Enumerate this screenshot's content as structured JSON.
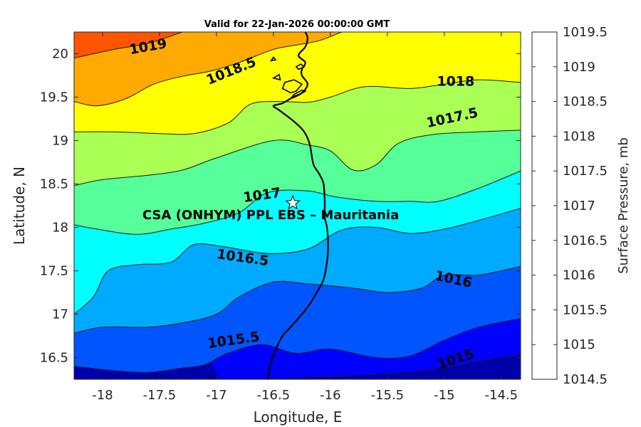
{
  "chart_data": {
    "type": "contourf",
    "title": "Valid for 22-Jan-2026 00:00:00 GMT",
    "xlabel": "Longitude, E",
    "ylabel": "Latitude, N",
    "xlim": [
      -18.25,
      -14.33
    ],
    "ylim": [
      16.25,
      20.25
    ],
    "x_ticks": [
      -18,
      -17.5,
      -17,
      -16.5,
      -16,
      -15.5,
      -15,
      -14.5
    ],
    "x_tick_labels": [
      "-18",
      "-17.5",
      "-17",
      "-16.5",
      "-16",
      "-15.5",
      "-15",
      "-14.5"
    ],
    "y_ticks": [
      16.5,
      17,
      17.5,
      18,
      18.5,
      19,
      19.5,
      20
    ],
    "y_tick_labels": [
      "16.5",
      "17",
      "17.5",
      "18",
      "18.5",
      "19",
      "19.5",
      "20"
    ],
    "colorbar": {
      "title": "Surface Pressure, mb",
      "levels": [
        1014.5,
        1015,
        1015.5,
        1016,
        1016.5,
        1017,
        1017.5,
        1018,
        1018.5,
        1019,
        1019.5
      ],
      "labels": [
        "1014.5",
        "1015",
        "1015.5",
        "1016",
        "1016.5",
        "1017",
        "1017.5",
        "1018",
        "1018.5",
        "1019",
        "1019.5"
      ],
      "colors": [
        "#0000aa",
        "#0000ff",
        "#0055ff",
        "#00aaff",
        "#00ffff",
        "#55ff99",
        "#aaff55",
        "#ffff00",
        "#ffaa00",
        "#ff5500",
        "#ff0000"
      ]
    },
    "contours": [
      {
        "level": 1015,
        "label": "1015",
        "label_lon": -14.9,
        "label_lat": 16.48,
        "label_angle": -18,
        "path": [
          [
            -16.6,
            16.25
          ],
          [
            -16.0,
            16.28
          ],
          [
            -15.4,
            16.32
          ],
          [
            -15.0,
            16.38
          ],
          [
            -14.6,
            16.48
          ],
          [
            -14.33,
            16.53
          ]
        ]
      },
      {
        "level": 1015.5,
        "label": "1015.5",
        "label_lon": -16.85,
        "label_lat": 16.7,
        "label_angle": -8,
        "path": [
          [
            -18.25,
            16.4
          ],
          [
            -17.9,
            16.35
          ],
          [
            -17.6,
            16.33
          ],
          [
            -17.3,
            16.38
          ],
          [
            -17.1,
            16.42
          ],
          [
            -16.9,
            16.55
          ],
          [
            -16.6,
            16.65
          ],
          [
            -16.3,
            16.55
          ],
          [
            -16.0,
            16.6
          ],
          [
            -15.6,
            16.5
          ],
          [
            -15.3,
            16.52
          ],
          [
            -15.0,
            16.7
          ],
          [
            -14.7,
            16.85
          ],
          [
            -14.33,
            16.95
          ]
        ]
      },
      {
        "level": 1016,
        "label": "1016",
        "label_lon": -14.92,
        "label_lat": 17.4,
        "label_angle": 12,
        "path": [
          [
            -18.25,
            16.78
          ],
          [
            -18.0,
            16.85
          ],
          [
            -17.6,
            16.85
          ],
          [
            -17.3,
            16.9
          ],
          [
            -17.0,
            17.0
          ],
          [
            -16.8,
            17.2
          ],
          [
            -16.5,
            17.37
          ],
          [
            -16.2,
            17.35
          ],
          [
            -15.8,
            17.3
          ],
          [
            -15.5,
            17.25
          ],
          [
            -15.2,
            17.3
          ],
          [
            -15.0,
            17.45
          ],
          [
            -14.7,
            17.45
          ],
          [
            -14.33,
            17.55
          ]
        ]
      },
      {
        "level": 1016.5,
        "label": "1016.5",
        "label_lon": -16.77,
        "label_lat": 17.65,
        "label_angle": 8,
        "path": [
          [
            -18.25,
            17.0
          ],
          [
            -18.08,
            17.2
          ],
          [
            -17.95,
            17.5
          ],
          [
            -17.7,
            17.57
          ],
          [
            -17.4,
            17.6
          ],
          [
            -17.2,
            17.8
          ],
          [
            -16.95,
            17.78
          ],
          [
            -16.55,
            17.7
          ],
          [
            -16.2,
            17.75
          ],
          [
            -15.9,
            17.97
          ],
          [
            -15.6,
            18.0
          ],
          [
            -15.3,
            17.93
          ],
          [
            -15.0,
            17.98
          ],
          [
            -14.7,
            18.08
          ],
          [
            -14.33,
            18.22
          ]
        ]
      },
      {
        "level": 1017,
        "label": "1017",
        "label_lon": -16.6,
        "label_lat": 18.37,
        "label_angle": -8,
        "path": [
          [
            -18.25,
            18.03
          ],
          [
            -18.05,
            17.98
          ],
          [
            -17.7,
            17.92
          ],
          [
            -17.4,
            17.98
          ],
          [
            -17.1,
            18.05
          ],
          [
            -16.8,
            18.17
          ],
          [
            -16.55,
            18.4
          ],
          [
            -16.2,
            18.42
          ],
          [
            -15.95,
            18.35
          ],
          [
            -15.6,
            18.3
          ],
          [
            -15.3,
            18.3
          ],
          [
            -15.05,
            18.3
          ],
          [
            -14.7,
            18.45
          ],
          [
            -14.33,
            18.65
          ]
        ]
      },
      {
        "level": 1017.5,
        "label": "1017.5",
        "label_lon": -14.93,
        "label_lat": 19.26,
        "label_angle": -12,
        "path": [
          [
            -18.25,
            18.48
          ],
          [
            -18.0,
            18.55
          ],
          [
            -17.6,
            18.6
          ],
          [
            -17.3,
            18.66
          ],
          [
            -17.0,
            18.8
          ],
          [
            -16.5,
            19.0
          ],
          [
            -16.2,
            18.95
          ],
          [
            -16.0,
            18.88
          ],
          [
            -15.8,
            18.66
          ],
          [
            -15.6,
            18.72
          ],
          [
            -15.4,
            18.97
          ],
          [
            -15.1,
            19.07
          ],
          [
            -14.7,
            19.1
          ],
          [
            -14.33,
            19.12
          ]
        ]
      },
      {
        "level": 1018,
        "label": "1018",
        "label_lon": -14.9,
        "label_lat": 19.68,
        "label_angle": 0,
        "path": [
          [
            -18.25,
            19.1
          ],
          [
            -17.9,
            19.1
          ],
          [
            -17.5,
            19.08
          ],
          [
            -17.2,
            19.08
          ],
          [
            -16.9,
            19.2
          ],
          [
            -16.7,
            19.42
          ],
          [
            -16.45,
            19.45
          ],
          [
            -16.2,
            19.44
          ],
          [
            -16.0,
            19.5
          ],
          [
            -15.7,
            19.62
          ],
          [
            -15.3,
            19.6
          ],
          [
            -15.0,
            19.65
          ],
          [
            -14.7,
            19.7
          ],
          [
            -14.33,
            19.67
          ]
        ]
      },
      {
        "level": 1018.5,
        "label": "1018.5",
        "label_lon": -16.87,
        "label_lat": 19.8,
        "label_angle": -22,
        "path": [
          [
            -18.25,
            19.45
          ],
          [
            -18.05,
            19.4
          ],
          [
            -17.8,
            19.48
          ],
          [
            -17.55,
            19.65
          ],
          [
            -17.3,
            19.74
          ],
          [
            -17.05,
            19.8
          ],
          [
            -16.8,
            19.9
          ],
          [
            -16.5,
            20.05
          ],
          [
            -16.3,
            20.1
          ],
          [
            -16.1,
            20.15
          ],
          [
            -15.9,
            20.25
          ]
        ]
      },
      {
        "level": 1019,
        "label": "1019",
        "label_lon": -17.6,
        "label_lat": 20.08,
        "label_angle": -10,
        "path": [
          [
            -18.25,
            19.95
          ],
          [
            -17.9,
            20.05
          ],
          [
            -17.6,
            20.12
          ],
          [
            -17.3,
            20.25
          ]
        ]
      }
    ],
    "coastline": [
      [
        -16.55,
        16.25
      ],
      [
        -16.52,
        16.45
      ],
      [
        -16.47,
        16.62
      ],
      [
        -16.42,
        16.75
      ],
      [
        -16.33,
        16.88
      ],
      [
        -16.2,
        17.08
      ],
      [
        -16.12,
        17.25
      ],
      [
        -16.06,
        17.4
      ],
      [
        -16.03,
        17.6
      ],
      [
        -16.02,
        17.8
      ],
      [
        -16.03,
        18.0
      ],
      [
        -16.05,
        18.12
      ],
      [
        -16.05,
        18.3
      ],
      [
        -16.06,
        18.5
      ],
      [
        -16.1,
        18.62
      ],
      [
        -16.15,
        18.73
      ],
      [
        -16.18,
        18.95
      ],
      [
        -16.23,
        19.1
      ],
      [
        -16.32,
        19.22
      ],
      [
        -16.45,
        19.35
      ],
      [
        -16.5,
        19.4
      ],
      [
        -16.42,
        19.43
      ],
      [
        -16.33,
        19.5
      ],
      [
        -16.25,
        19.55
      ],
      [
        -16.2,
        19.65
      ],
      [
        -16.25,
        19.75
      ],
      [
        -16.25,
        19.82
      ],
      [
        -16.22,
        19.9
      ],
      [
        -16.28,
        19.98
      ],
      [
        -16.22,
        20.08
      ],
      [
        -16.2,
        20.18
      ],
      [
        -16.22,
        20.25
      ]
    ],
    "islands": [
      [
        [
          -16.42,
          19.6
        ],
        [
          -16.35,
          19.55
        ],
        [
          -16.3,
          19.57
        ],
        [
          -16.25,
          19.65
        ],
        [
          -16.32,
          19.7
        ],
        [
          -16.4,
          19.67
        ],
        [
          -16.42,
          19.6
        ]
      ],
      [
        [
          -16.35,
          19.48
        ],
        [
          -16.28,
          19.52
        ],
        [
          -16.22,
          19.57
        ],
        [
          -16.25,
          19.58
        ],
        [
          -16.32,
          19.53
        ],
        [
          -16.35,
          19.48
        ]
      ],
      [
        [
          -16.28,
          19.82
        ],
        [
          -16.23,
          19.85
        ],
        [
          -16.26,
          19.88
        ],
        [
          -16.3,
          19.85
        ],
        [
          -16.28,
          19.82
        ]
      ],
      [
        [
          -16.5,
          19.72
        ],
        [
          -16.44,
          19.7
        ],
        [
          -16.45,
          19.76
        ],
        [
          -16.5,
          19.72
        ]
      ],
      [
        [
          -16.52,
          19.92
        ],
        [
          -16.48,
          19.93
        ],
        [
          -16.5,
          19.96
        ],
        [
          -16.52,
          19.92
        ]
      ]
    ],
    "site": {
      "name": "CSA (ONHYM) PPL EBS  – Mauritania",
      "lon": -16.33,
      "lat": 18.28
    }
  }
}
